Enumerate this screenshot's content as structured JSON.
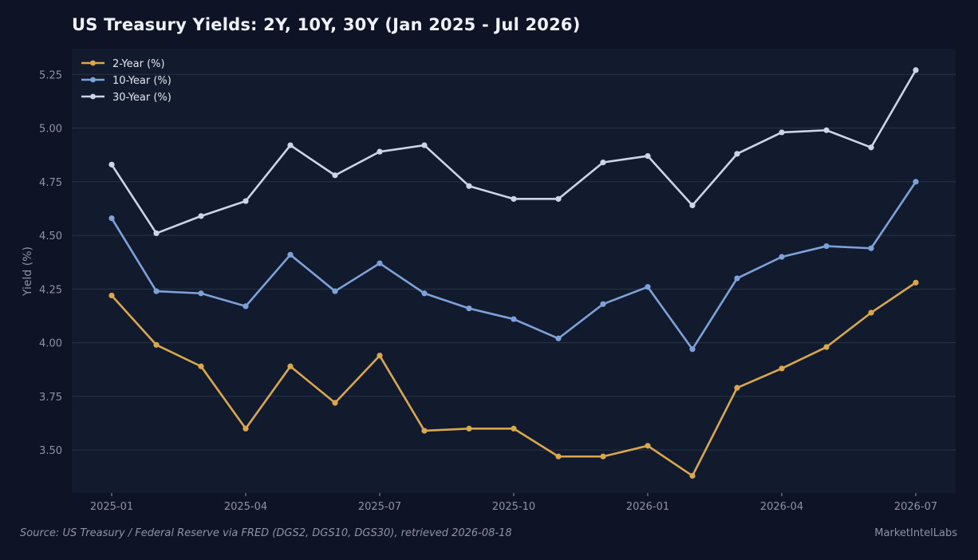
{
  "title": "US Treasury Yields: 2Y, 10Y, 30Y (Jan 2025 - Jul 2026)",
  "footer": {
    "source": "Source: US Treasury / Federal Reserve via FRED (DGS2, DGS10, DGS30), retrieved 2026-08-18",
    "brand": "MarketIntelLabs"
  },
  "chart_data": {
    "type": "line",
    "title": "US Treasury Yields: 2Y, 10Y, 30Y (Jan 2025 - Jul 2026)",
    "xlabel": "",
    "ylabel": "Yield (%)",
    "ylim": [
      3.3,
      5.37
    ],
    "grid": true,
    "legend_position": "top-left",
    "x": [
      "2025-01",
      "2025-02",
      "2025-03",
      "2025-04",
      "2025-05",
      "2025-06",
      "2025-07",
      "2025-08",
      "2025-09",
      "2025-10",
      "2025-11",
      "2025-12",
      "2026-01",
      "2026-02",
      "2026-03",
      "2026-04",
      "2026-05",
      "2026-06",
      "2026-07"
    ],
    "x_tick_labels": [
      "2025-01",
      "2025-04",
      "2025-07",
      "2025-10",
      "2026-01",
      "2026-04",
      "2026-07"
    ],
    "y_tick_labels": [
      "3.50",
      "3.75",
      "4.00",
      "4.25",
      "4.50",
      "4.75",
      "5.00",
      "5.25"
    ],
    "series": [
      {
        "name": "2-Year (%)",
        "color": "#d9a84e",
        "values": [
          4.22,
          3.99,
          3.89,
          3.6,
          3.89,
          3.72,
          3.94,
          3.59,
          3.6,
          3.6,
          3.47,
          3.47,
          3.52,
          3.38,
          3.79,
          3.88,
          3.98,
          4.14,
          4.28
        ]
      },
      {
        "name": "10-Year (%)",
        "color": "#7ea2d8",
        "values": [
          4.58,
          4.24,
          4.23,
          4.17,
          4.41,
          4.24,
          4.37,
          4.23,
          4.16,
          4.11,
          4.02,
          4.18,
          4.26,
          3.97,
          4.3,
          4.4,
          4.45,
          4.44,
          4.75
        ]
      },
      {
        "name": "30-Year (%)",
        "color": "#ccd5e6",
        "values": [
          4.83,
          4.51,
          4.59,
          4.66,
          4.92,
          4.78,
          4.89,
          4.92,
          4.73,
          4.67,
          4.67,
          4.84,
          4.87,
          4.64,
          4.88,
          4.98,
          4.99,
          4.91,
          5.27
        ]
      }
    ]
  }
}
